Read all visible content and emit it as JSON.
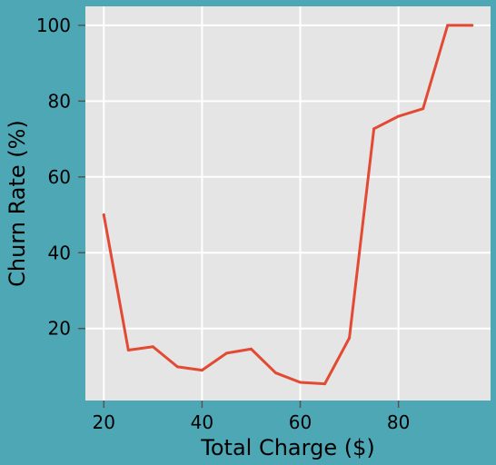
{
  "colors": {
    "figure_background": "#4ea7b5",
    "plot_background": "#e5e5e5",
    "grid": "#ffffff",
    "line": "#e24a33",
    "text": "#000000"
  },
  "chart_data": {
    "type": "line",
    "title": "",
    "xlabel": "Total Charge ($)",
    "ylabel": "Churn Rate (%)",
    "xlim": [
      16.25,
      98.75
    ],
    "ylim": [
      1.0,
      105.0
    ],
    "xticks": [
      20,
      40,
      60,
      80
    ],
    "yticks": [
      20,
      40,
      60,
      80,
      100
    ],
    "grid": true,
    "x": [
      20,
      25,
      30,
      35,
      40,
      45,
      50,
      55,
      60,
      65,
      70,
      75,
      80,
      85,
      90,
      95
    ],
    "series": [
      {
        "values": [
          50.0,
          14.3,
          15.2,
          9.9,
          9.0,
          13.5,
          14.6,
          8.3,
          5.8,
          5.4,
          17.5,
          72.7,
          76.0,
          78.0,
          100.0,
          100.0
        ]
      }
    ]
  }
}
